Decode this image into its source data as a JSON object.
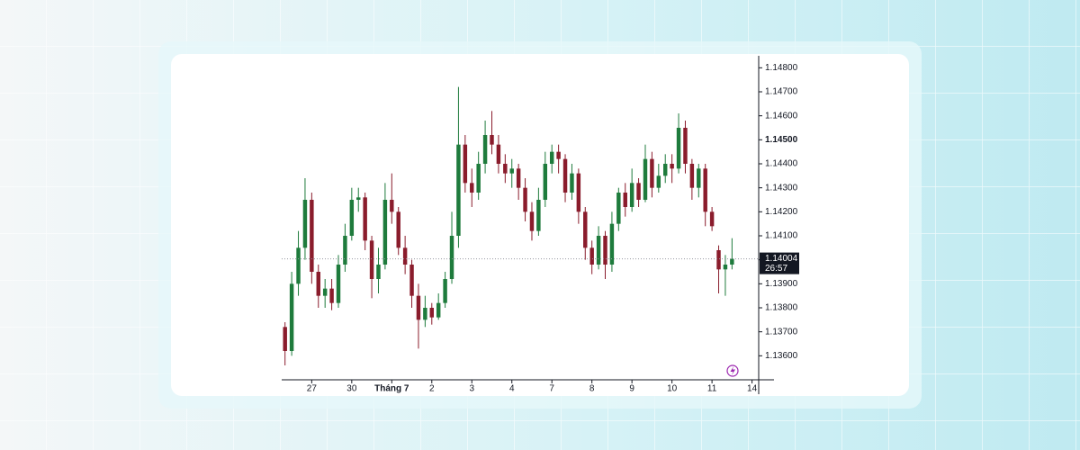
{
  "chart_data": {
    "type": "candlestick",
    "up_color": "#1e7b3c",
    "down_color": "#8a1c2c",
    "open": [
      1.1372,
      1.1362,
      1.139,
      1.1405,
      1.1425,
      1.1395,
      1.1385,
      1.1388,
      1.1382,
      1.1398,
      1.141,
      1.1425,
      1.1426,
      1.1408,
      1.1392,
      1.1398,
      1.1425,
      1.142,
      1.1405,
      1.1398,
      1.1385,
      1.1375,
      1.138,
      1.1376,
      1.1382,
      1.1392,
      1.141,
      1.1448,
      1.1432,
      1.1428,
      1.144,
      1.1452,
      1.1448,
      1.144,
      1.1436,
      1.1438,
      1.143,
      1.142,
      1.1412,
      1.1425,
      1.144,
      1.1445,
      1.1442,
      1.1428,
      1.1436,
      1.142,
      1.1405,
      1.1398,
      1.141,
      1.1398,
      1.1415,
      1.1428,
      1.1422,
      1.1432,
      1.1425,
      1.1442,
      1.143,
      1.1435,
      1.144,
      1.1438,
      1.1455,
      1.144,
      1.143,
      1.1438,
      1.142,
      1.1404,
      1.1396,
      1.1398
    ],
    "high": [
      1.1374,
      1.1395,
      1.1412,
      1.1434,
      1.1428,
      1.1398,
      1.1392,
      1.1392,
      1.1402,
      1.1415,
      1.143,
      1.143,
      1.1428,
      1.141,
      1.1405,
      1.1432,
      1.1436,
      1.1422,
      1.141,
      1.14,
      1.139,
      1.1385,
      1.1382,
      1.1386,
      1.1395,
      1.142,
      1.1472,
      1.1452,
      1.1438,
      1.1445,
      1.1458,
      1.1462,
      1.1452,
      1.1444,
      1.1442,
      1.144,
      1.1434,
      1.1424,
      1.143,
      1.1445,
      1.1448,
      1.1448,
      1.1444,
      1.144,
      1.1438,
      1.1422,
      1.1408,
      1.1414,
      1.1412,
      1.142,
      1.143,
      1.1432,
      1.1438,
      1.1434,
      1.1448,
      1.1445,
      1.144,
      1.1444,
      1.1444,
      1.1461,
      1.1458,
      1.1442,
      1.144,
      1.144,
      1.1422,
      1.1406,
      1.1402,
      1.1409
    ],
    "low": [
      1.1356,
      1.136,
      1.1385,
      1.14,
      1.139,
      1.138,
      1.138,
      1.1379,
      1.138,
      1.1395,
      1.1408,
      1.142,
      1.1404,
      1.1384,
      1.1386,
      1.1396,
      1.1415,
      1.1402,
      1.1394,
      1.138,
      1.1363,
      1.1372,
      1.1373,
      1.1375,
      1.138,
      1.139,
      1.1405,
      1.1428,
      1.1422,
      1.1425,
      1.1436,
      1.1444,
      1.1436,
      1.1432,
      1.143,
      1.1425,
      1.1416,
      1.1408,
      1.141,
      1.1422,
      1.1436,
      1.1436,
      1.1424,
      1.1425,
      1.1415,
      1.14,
      1.1394,
      1.1396,
      1.1392,
      1.1395,
      1.1412,
      1.1418,
      1.142,
      1.1422,
      1.1424,
      1.1426,
      1.1428,
      1.1432,
      1.1432,
      1.1436,
      1.1436,
      1.1425,
      1.1426,
      1.1414,
      1.1412,
      1.1386,
      1.1385,
      1.1396
    ],
    "close": [
      1.1362,
      1.139,
      1.1405,
      1.1425,
      1.1395,
      1.1385,
      1.1388,
      1.1382,
      1.1398,
      1.141,
      1.1425,
      1.1426,
      1.1408,
      1.1392,
      1.1398,
      1.1425,
      1.142,
      1.1405,
      1.1398,
      1.1385,
      1.1375,
      1.138,
      1.1376,
      1.1382,
      1.1392,
      1.141,
      1.1448,
      1.1432,
      1.1428,
      1.144,
      1.1452,
      1.1448,
      1.144,
      1.1436,
      1.1438,
      1.143,
      1.142,
      1.1412,
      1.1425,
      1.144,
      1.1445,
      1.1442,
      1.1428,
      1.1436,
      1.142,
      1.1405,
      1.1398,
      1.141,
      1.1398,
      1.1415,
      1.1428,
      1.1422,
      1.1432,
      1.1425,
      1.1442,
      1.143,
      1.1435,
      1.144,
      1.1438,
      1.1455,
      1.144,
      1.143,
      1.1438,
      1.142,
      1.1414,
      1.1396,
      1.1398,
      1.14004
    ],
    "xlim": [
      -0.5,
      71
    ],
    "xticks": [
      {
        "value": 4,
        "label": "27"
      },
      {
        "value": 10,
        "label": "30"
      },
      {
        "value": 16,
        "label": "Tháng 7",
        "bold": true
      },
      {
        "value": 22,
        "label": "2"
      },
      {
        "value": 28,
        "label": "3"
      },
      {
        "value": 34,
        "label": "4"
      },
      {
        "value": 40,
        "label": "7"
      },
      {
        "value": 46,
        "label": "8"
      },
      {
        "value": 52,
        "label": "9"
      },
      {
        "value": 58,
        "label": "10"
      },
      {
        "value": 64,
        "label": "11"
      },
      {
        "value": 70,
        "label": "14"
      }
    ],
    "ylim": [
      1.135,
      1.1485
    ],
    "yticks": [
      {
        "value": 1.136,
        "label": "1.13600"
      },
      {
        "value": 1.137,
        "label": "1.13700"
      },
      {
        "value": 1.138,
        "label": "1.13800"
      },
      {
        "value": 1.139,
        "label": "1.13900"
      },
      {
        "value": 1.14,
        "label": "1.14000"
      },
      {
        "value": 1.141,
        "label": "1.14100"
      },
      {
        "value": 1.142,
        "label": "1.14200"
      },
      {
        "value": 1.143,
        "label": "1.14300"
      },
      {
        "value": 1.144,
        "label": "1.14400"
      },
      {
        "value": 1.145,
        "label": "1.14500",
        "bold": true
      },
      {
        "value": 1.146,
        "label": "1.14600"
      },
      {
        "value": 1.147,
        "label": "1.14700"
      },
      {
        "value": 1.148,
        "label": "1.14800"
      }
    ],
    "last_price": {
      "value": 1.14004,
      "label": "1.14004"
    },
    "countdown": "26:57"
  }
}
